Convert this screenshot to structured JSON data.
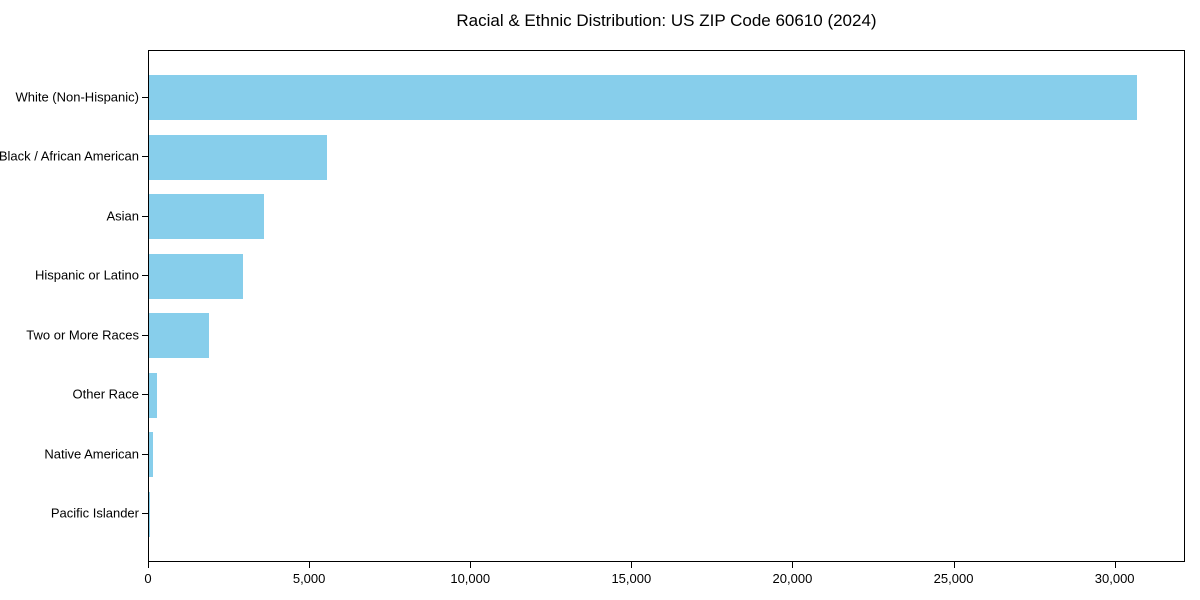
{
  "chart_data": {
    "type": "bar",
    "orientation": "horizontal",
    "title": "Racial & Ethnic Distribution: US ZIP Code 60610 (2024)",
    "categories": [
      "White (Non-Hispanic)",
      "Black / African American",
      "Asian",
      "Hispanic or Latino",
      "Two or More Races",
      "Other Race",
      "Native American",
      "Pacific Islander"
    ],
    "values": [
      30650,
      5510,
      3570,
      2930,
      1860,
      240,
      130,
      15
    ],
    "bar_color": "#87CEEB",
    "axis_color": "#000000",
    "text_color": "#000000",
    "xlabel": "",
    "ylabel": "",
    "xlim": [
      0,
      32183
    ],
    "x_ticks": [
      {
        "value": 0,
        "label": "0"
      },
      {
        "value": 5000,
        "label": "5,000"
      },
      {
        "value": 10000,
        "label": "10,000"
      },
      {
        "value": 15000,
        "label": "15,000"
      },
      {
        "value": 20000,
        "label": "20,000"
      },
      {
        "value": 25000,
        "label": "25,000"
      },
      {
        "value": 30000,
        "label": "30,000"
      }
    ],
    "grid": false,
    "legend": null
  }
}
